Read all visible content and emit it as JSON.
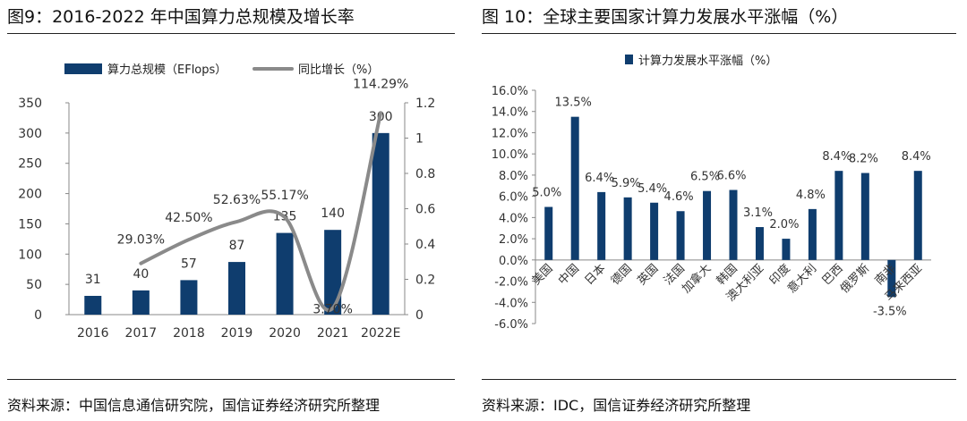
{
  "left": {
    "title": "图9：2016-2022 年中国算力总规模及增长率",
    "source": "资料来源：中国信息通信研究院，国信证券经济研究所整理"
  },
  "right": {
    "title": "图 10：全球主要国家计算力发展水平涨幅（%）",
    "source": "资料来源：IDC，国信证券经济研究所整理"
  },
  "colors": {
    "bar": "#0f3d6e",
    "line": "#8a8a8a"
  },
  "chart_data": [
    {
      "type": "bar",
      "title": "2016-2022 年中国算力总规模及增长率",
      "categories": [
        "2016",
        "2017",
        "2018",
        "2019",
        "2020",
        "2021",
        "2022E"
      ],
      "series": [
        {
          "name": "算力总规模（EFlops）",
          "type": "bar",
          "axis": "left",
          "values": [
            31,
            40,
            57,
            87,
            135,
            140,
            300
          ],
          "labels": [
            "31",
            "40",
            "57",
            "87",
            "135",
            "140",
            "300"
          ]
        },
        {
          "name": "同比增长（%）",
          "type": "line",
          "axis": "right",
          "values": [
            null,
            0.2903,
            0.425,
            0.5263,
            0.5517,
            0.037,
            1.1429
          ],
          "labels": [
            "",
            "29.03%",
            "42.50%",
            "52.63%",
            "55.17%",
            "3.70%",
            "114.29%"
          ]
        }
      ],
      "ylim": [
        0,
        350
      ],
      "yticks": [
        "0",
        "50",
        "100",
        "150",
        "200",
        "250",
        "300",
        "350"
      ],
      "y2lim": [
        0,
        1.2
      ],
      "y2ticks": [
        "0",
        "0.2",
        "0.4",
        "0.6",
        "0.8",
        "1",
        "1.2"
      ],
      "legend_position": "top"
    },
    {
      "type": "bar",
      "title": "全球主要国家计算力发展水平涨幅（%）",
      "categories": [
        "美国",
        "中国",
        "日本",
        "德国",
        "英国",
        "法国",
        "加拿大",
        "韩国",
        "澳大利亚",
        "印度",
        "意大利",
        "巴西",
        "俄罗斯",
        "南非",
        "马来西亚"
      ],
      "series": [
        {
          "name": "计算力发展水平涨幅（%）",
          "values": [
            5.0,
            13.5,
            6.4,
            5.9,
            5.4,
            4.6,
            6.5,
            6.6,
            3.1,
            2.0,
            4.8,
            8.4,
            8.2,
            -3.5,
            8.4
          ],
          "labels": [
            "5.0%",
            "13.5%",
            "6.4%",
            "5.9%",
            "5.4%",
            "4.6%",
            "6.5%",
            "6.6%",
            "3.1%",
            "2.0%",
            "4.8%",
            "8.4%",
            "8.2%",
            "-3.5%",
            "8.4%"
          ]
        }
      ],
      "ylim": [
        -6,
        16
      ],
      "yticks": [
        "-6.0%",
        "-4.0%",
        "-2.0%",
        "0.0%",
        "2.0%",
        "4.0%",
        "6.0%",
        "8.0%",
        "10.0%",
        "12.0%",
        "14.0%",
        "16.0%"
      ],
      "legend_position": "top"
    }
  ]
}
